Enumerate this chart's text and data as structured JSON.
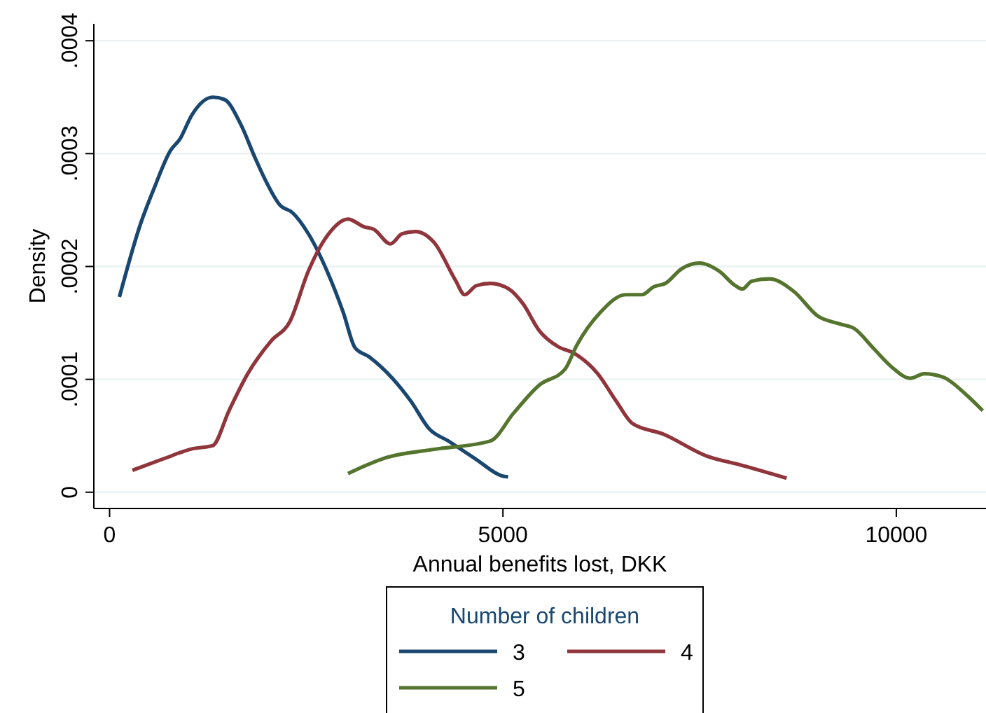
{
  "chart_data": {
    "type": "line",
    "xlabel": "Annual benefits lost, DKK",
    "ylabel": "Density",
    "legend_title": "Number of children",
    "legend": "bottom",
    "grid": "y",
    "xlim": [
      -200,
      11140
    ],
    "ylim": [
      -1.44e-05,
      0.000415
    ],
    "xticks": [
      0,
      5000,
      10000
    ],
    "yticks": [
      0,
      {
        "value": 0.0001,
        "label": ".0001"
      },
      {
        "value": 0.0002,
        "label": ".0002"
      },
      {
        "value": 0.0003,
        "label": ".0003"
      },
      {
        "value": 0.0004,
        "label": ".0004"
      }
    ],
    "series": [
      {
        "name": "3",
        "color": "#1a476f",
        "x": [
          125,
          390,
          570,
          777,
          895,
          1044,
          1311,
          1459,
          1667,
          1845,
          1963,
          2171,
          2319,
          2527,
          2764,
          2972,
          3120,
          3298,
          3594,
          3831,
          4069,
          4306,
          4662,
          4988,
          5066
        ],
        "values": [
          0.000173,
          0.000237,
          0.00027,
          0.000303,
          0.000313,
          0.000334,
          0.00035,
          0.000348,
          0.000326,
          0.000297,
          0.000279,
          0.000254,
          0.000248,
          0.000229,
          0.000196,
          0.000159,
          0.000128,
          0.00012,
          0.000101,
          8.05e-05,
          5.57e-05,
          4.54e-05,
          2.9e-05,
          1.45e-05,
          1.36e-05
        ]
      },
      {
        "name": "4",
        "color": "#90353b",
        "x": [
          290,
          689,
          1044,
          1311,
          1518,
          1756,
          2053,
          2290,
          2527,
          2764,
          3031,
          3238,
          3357,
          3570,
          3718,
          3891,
          4128,
          4395,
          4514,
          4662,
          4840,
          5077,
          5255,
          5463,
          5700,
          5907,
          6205,
          6441,
          6649,
          7034,
          7598,
          7984,
          8606
        ],
        "values": [
          1.94e-05,
          2.97e-05,
          3.84e-05,
          4.13e-05,
          7.23e-05,
          0.000105,
          0.000134,
          0.000151,
          0.000196,
          0.000227,
          0.000242,
          0.000235,
          0.000233,
          0.00022,
          0.000229,
          0.000231,
          0.000221,
          0.000188,
          0.000175,
          0.000183,
          0.000185,
          0.00018,
          0.000167,
          0.000143,
          0.000129,
          0.000123,
          0.000105,
          8.05e-05,
          6.07e-05,
          5.16e-05,
          3.18e-05,
          2.48e-05,
          1.24e-05
        ]
      },
      {
        "name": "5",
        "color": "#55752f",
        "x": [
          3031,
          3535,
          4128,
          4840,
          5137,
          5463,
          5789,
          5937,
          6234,
          6560,
          6767,
          6916,
          7064,
          7272,
          7497,
          7746,
          7954,
          8043,
          8162,
          8387,
          8696,
          9004,
          9288,
          9466,
          9703,
          9941,
          10178,
          10356,
          10593,
          10890,
          11098
        ],
        "values": [
          1.66e-05,
          3.1e-05,
          3.8e-05,
          4.54e-05,
          7.02e-05,
          9.5e-05,
          0.000109,
          0.00013,
          0.000159,
          0.000175,
          0.000175,
          0.000182,
          0.000185,
          0.000198,
          0.000203,
          0.000196,
          0.000183,
          0.00018,
          0.000187,
          0.000189,
          0.000178,
          0.000156,
          0.000149,
          0.000145,
          0.000128,
          0.000111,
          0.000101,
          0.000105,
          0.000102,
          8.63e-05,
          7.23e-05
        ]
      }
    ]
  }
}
